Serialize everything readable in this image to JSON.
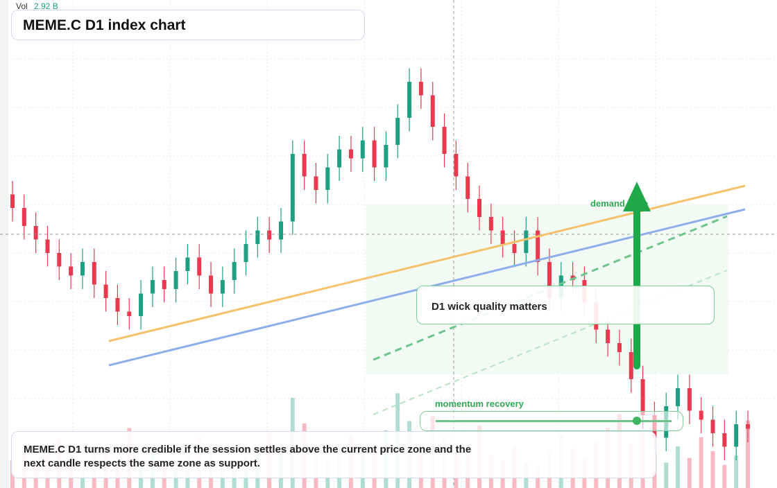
{
  "header": {
    "title": "MEME.C D1 index chart",
    "volume_label": "Vol",
    "volume_value": "2.92 B"
  },
  "annotations": {
    "zone": "demand zone",
    "note": "D1 wick quality matters",
    "signal": "momentum recovery",
    "caption": "MEME.C D1 turns more credible if the session settles above the current price zone and the next candle respects the same zone as support."
  },
  "chart_data": {
    "type": "candlestick",
    "up_color": "#1e9e82",
    "down_color": "#e8394f",
    "ylim": [
      0,
      100
    ],
    "volume_ylim": [
      0,
      6
    ],
    "open": [
      63,
      60,
      56,
      53,
      50,
      47,
      45,
      48,
      43,
      40,
      37,
      36,
      41,
      44,
      42,
      46,
      49,
      45,
      41,
      44,
      48,
      52,
      55,
      53,
      57,
      72,
      67,
      64,
      69,
      73,
      71,
      75,
      69,
      74,
      80,
      88,
      85,
      78,
      72,
      67,
      62,
      58,
      55,
      52,
      50,
      55,
      48,
      40,
      45,
      44,
      39,
      33,
      30,
      28,
      22,
      14,
      9,
      16,
      20,
      15,
      13,
      10,
      7,
      12
    ],
    "high": [
      66,
      63,
      59,
      56,
      53,
      50,
      51,
      51,
      46,
      43,
      40,
      44,
      47,
      47,
      49,
      52,
      52,
      48,
      47,
      51,
      55,
      58,
      58,
      60,
      75,
      75,
      70,
      72,
      76,
      76,
      78,
      78,
      77,
      83,
      91,
      91,
      88,
      81,
      75,
      70,
      65,
      61,
      58,
      55,
      58,
      58,
      51,
      48,
      48,
      47,
      42,
      36,
      33,
      31,
      25,
      17,
      19,
      23,
      23,
      18,
      16,
      13,
      15,
      15
    ],
    "low": [
      57,
      53,
      50,
      47,
      44,
      42,
      42,
      40,
      37,
      34,
      33,
      33,
      38,
      39,
      39,
      43,
      42,
      38,
      38,
      41,
      45,
      49,
      50,
      50,
      54,
      64,
      61,
      61,
      66,
      68,
      68,
      66,
      66,
      71,
      77,
      82,
      75,
      69,
      64,
      59,
      55,
      52,
      49,
      47,
      47,
      45,
      37,
      37,
      41,
      36,
      30,
      27,
      25,
      19,
      11,
      6,
      6,
      13,
      12,
      10,
      7,
      4,
      4,
      8
    ],
    "close": [
      60,
      56,
      53,
      50,
      47,
      45,
      48,
      43,
      40,
      37,
      36,
      41,
      44,
      42,
      46,
      49,
      45,
      41,
      44,
      48,
      52,
      55,
      53,
      57,
      72,
      67,
      64,
      69,
      73,
      71,
      75,
      69,
      74,
      80,
      88,
      85,
      78,
      72,
      67,
      62,
      58,
      55,
      52,
      50,
      55,
      48,
      40,
      45,
      44,
      39,
      33,
      30,
      28,
      22,
      14,
      9,
      16,
      20,
      15,
      13,
      10,
      7,
      12,
      11
    ],
    "volume": [
      1.2,
      1.6,
      0.9,
      1.4,
      2.1,
      1.1,
      0.8,
      1.5,
      1.9,
      1.3,
      2.6,
      1.0,
      1.7,
      1.2,
      0.9,
      1.4,
      2.2,
      1.6,
      1.1,
      0.8,
      1.3,
      1.8,
      2.4,
      1.5,
      3.9,
      2.8,
      1.6,
      1.2,
      1.9,
      2.3,
      1.4,
      1.7,
      2.5,
      4.1,
      2.9,
      1.8,
      3.1,
      2.2,
      1.5,
      1.9,
      2.7,
      1.4,
      1.2,
      1.8,
      1.1,
      0.9,
      1.6,
      2.3,
      1.7,
      1.3,
      2.0,
      2.6,
      3.2,
      1.9,
      2.4,
      1.5,
      1.1,
      1.8,
      1.3,
      2.2,
      1.6,
      1.0,
      1.4,
      2.92
    ]
  }
}
